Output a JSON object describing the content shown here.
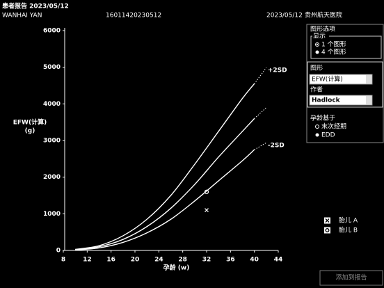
{
  "header": {
    "report": "患者报告 2023/05/12",
    "patient": "WANHAI YAN",
    "id": "16011420230512",
    "date": "2023/05/12",
    "hospital": "贵州航天医院"
  },
  "panel": {
    "title": "图形选项",
    "display": "显示",
    "one": "1 个图形",
    "four": "4 个图形",
    "graph": "图形",
    "graph_value": "EFW(计算)",
    "author": "作者",
    "author_value": "Hadlock",
    "ga_basis": "孕龄基于",
    "lmp": "末次经期",
    "edd": "EDD"
  },
  "button": "添加到报告",
  "chart_data": {
    "type": "line",
    "x_label": "孕龄 (w)",
    "y_label": [
      "EFW(计算)",
      "(g)"
    ],
    "xlim": [
      8,
      44
    ],
    "xticks": [
      8,
      12,
      16,
      20,
      24,
      28,
      32,
      36,
      40,
      44
    ],
    "ylim": [
      0,
      6000
    ],
    "yticks": [
      0,
      1000,
      2000,
      3000,
      4000,
      5000,
      6000
    ],
    "dashed_after": 40,
    "x": [
      10,
      14,
      18,
      22,
      26,
      30,
      34,
      38,
      40,
      42
    ],
    "series": [
      {
        "name": "+2SD",
        "color": "#ffffff",
        "values": [
          30,
          130,
          400,
          850,
          1500,
          2350,
          3250,
          4150,
          4550,
          4990
        ]
      },
      {
        "color": "#ffffff",
        "values": [
          20,
          100,
          300,
          650,
          1150,
          1800,
          2550,
          3250,
          3600,
          3900
        ]
      },
      {
        "name": "-2SD",
        "color": "#ffffff",
        "values": [
          10,
          70,
          220,
          480,
          850,
          1350,
          1900,
          2450,
          2750,
          2940
        ]
      }
    ],
    "points": [
      {
        "name": "胎儿 A",
        "marker": "x",
        "x": [
          32
        ],
        "values": [
          1100
        ]
      },
      {
        "name": "胎儿 B",
        "marker": "o",
        "x": [
          32
        ],
        "values": [
          1600
        ]
      }
    ]
  }
}
